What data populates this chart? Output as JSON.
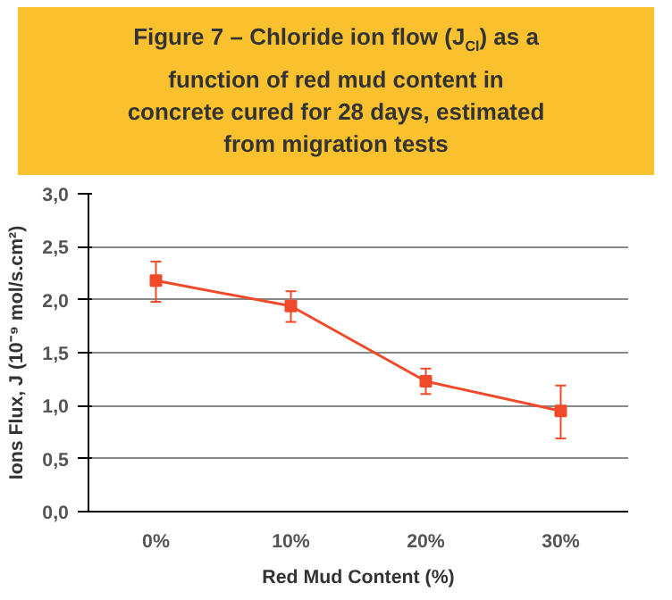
{
  "chart_data": {
    "type": "line",
    "title": "Figure 7 – Chloride ion flow (J$_{Cl}$) as a function of red mud content in concrete cured for 28 days, estimated from migration tests",
    "xlabel": "Red Mud Content (%)",
    "ylabel": "Ions Flux, J (10⁻⁹ mol/s.cm²)",
    "categories": [
      "0%",
      "10%",
      "20%",
      "30%"
    ],
    "series": [
      {
        "color": "#f04a2a",
        "values": [
          2.18,
          1.94,
          1.23,
          0.95
        ],
        "errors": [
          [
            1.98,
            2.36
          ],
          [
            1.79,
            2.08
          ],
          [
            1.11,
            1.35
          ],
          [
            0.69,
            1.19
          ]
        ]
      }
    ],
    "ylim": [
      0,
      3
    ],
    "yticks": [
      {
        "value": 0,
        "label": "0,0"
      },
      {
        "value": 0.5,
        "label": "0,5"
      },
      {
        "value": 1,
        "label": "1,0"
      },
      {
        "value": 1.5,
        "label": "1,5"
      },
      {
        "value": 2,
        "label": "2,0"
      },
      {
        "value": 2.5,
        "label": "2,5"
      },
      {
        "value": 3,
        "label": "3,0"
      }
    ],
    "grid": "y",
    "marker": "square",
    "line_style": "solid"
  }
}
